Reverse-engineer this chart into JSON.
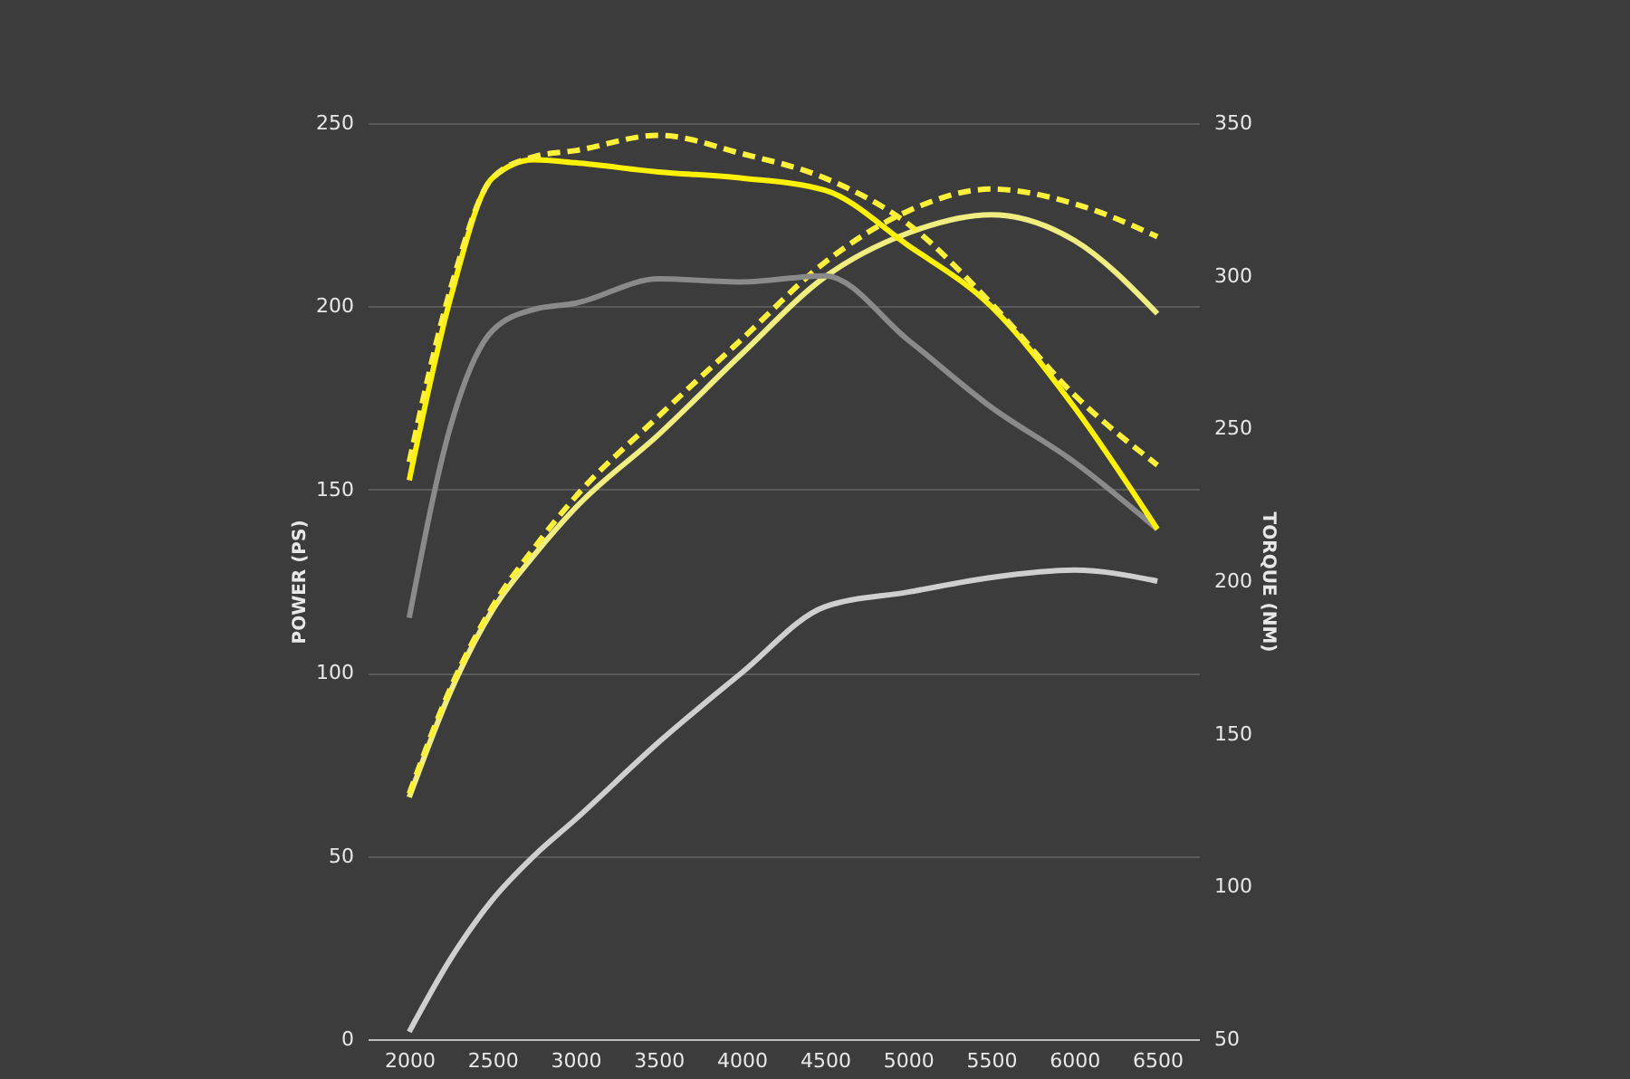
{
  "chart_data": {
    "type": "line",
    "xlabel": null,
    "ylabel": "POWER (PS)",
    "y2label": "TORQUE (NM)",
    "x": [
      2000,
      2250,
      2500,
      2750,
      3000,
      3500,
      4000,
      4500,
      5000,
      5500,
      6000,
      6500
    ],
    "xlim": [
      1750,
      6750
    ],
    "xticks": [
      2000,
      2500,
      3000,
      3500,
      4000,
      4500,
      5000,
      5500,
      6000,
      6500
    ],
    "ylim": [
      0,
      250
    ],
    "yticks": [
      0,
      50,
      100,
      150,
      200,
      250
    ],
    "y2lim": [
      50,
      350
    ],
    "y2ticks": [
      50,
      100,
      150,
      200,
      250,
      300,
      350
    ],
    "grid": "y",
    "legend": false,
    "marker": "none",
    "series": [
      {
        "color": "#cfcfcf",
        "line_style": "solid",
        "values": [
          2,
          22,
          38,
          50,
          60,
          81,
          100,
          118,
          122,
          126,
          128,
          125
        ]
      },
      {
        "color": "#f0ee80",
        "line_style": "solid",
        "values": [
          66,
          95,
          117,
          132,
          145,
          165,
          187,
          208,
          220,
          225,
          218,
          198
        ]
      },
      {
        "color": "#fff03a",
        "line_style": "dashed",
        "values": [
          67,
          96,
          118,
          134,
          148,
          170,
          191,
          212,
          226,
          232,
          228,
          219
        ]
      },
      {
        "color": "#8a8a8a",
        "line_style": "solid",
        "axis": "y2",
        "values": [
          188,
          251,
          282,
          289,
          291,
          299,
          298,
          300,
          279,
          257,
          239,
          217
        ]
      },
      {
        "color": "#fff200",
        "line_style": "solid",
        "axis": "y2",
        "values": [
          233,
          293,
          332,
          338,
          337,
          334,
          332,
          328,
          310,
          290,
          257,
          217
        ]
      },
      {
        "color": "#fff03a",
        "line_style": "dashed",
        "axis": "y2",
        "values": [
          239,
          296,
          332,
          339,
          341,
          346,
          340,
          332,
          317,
          291,
          261,
          238
        ]
      }
    ]
  }
}
